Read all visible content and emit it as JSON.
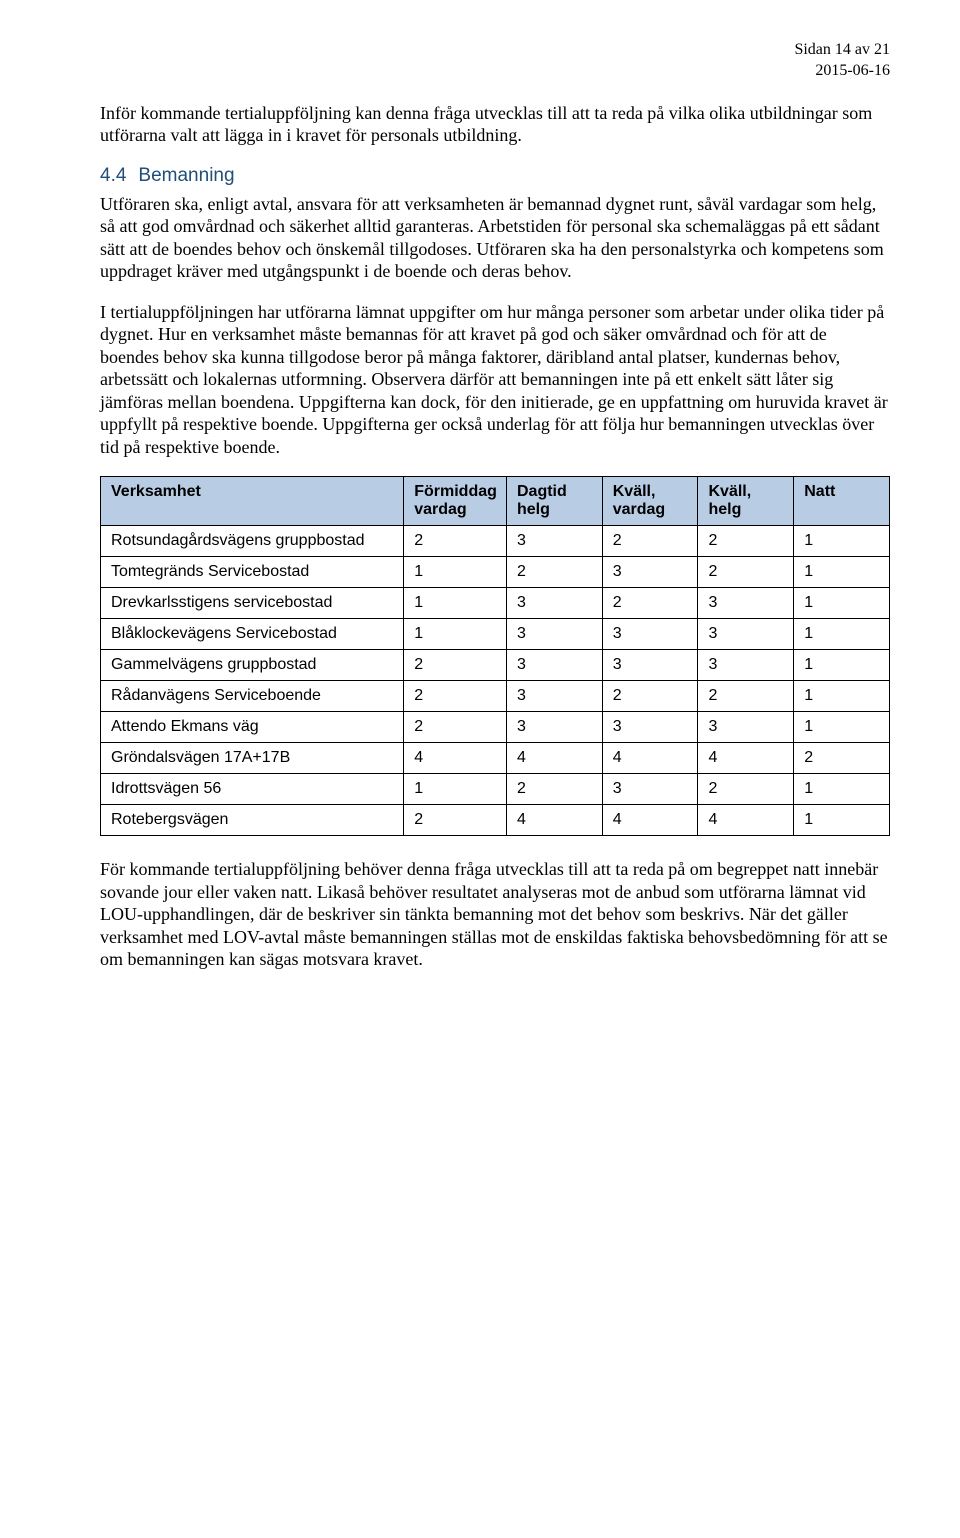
{
  "header": {
    "page_label": "Sidan 14 av 21",
    "date": "2015-06-16"
  },
  "intro": "Inför kommande tertialuppföljning kan denna fråga utvecklas till att ta reda på vilka olika utbildningar som utförarna valt att lägga in i kravet för personals utbildning.",
  "section": {
    "number": "4.4",
    "title": "Bemanning",
    "p1": "Utföraren ska, enligt avtal, ansvara för att verksamheten är bemannad dygnet runt, såväl vardagar som helg, så att god omvårdnad och säkerhet alltid garanteras. Arbetstiden för personal ska schemaläggas på ett sådant sätt att de boendes behov och önskemål tillgodoses. Utföraren ska ha den personalstyrka och kompetens som uppdraget kräver med utgångspunkt i de boende och deras behov.",
    "p2": "I tertialuppföljningen har utförarna lämnat uppgifter om hur många personer som arbetar under olika tider på dygnet. Hur en verksamhet måste bemannas för att kravet på god och säker omvårdnad och för att de boendes behov ska kunna tillgodose beror på många faktorer, däribland antal platser, kundernas behov, arbetssätt och lokalernas utformning. Observera därför att bemanningen inte på ett enkelt sätt låter sig jämföras mellan boendena. Uppgifterna kan dock, för den initierade, ge en uppfattning om huruvida kravet är uppfyllt på respektive boende. Uppgifterna ger också underlag för att följa hur bemanningen utvecklas över tid på respektive boende."
  },
  "table": {
    "columns": [
      "Verksamhet",
      "Förmiddag vardag",
      "Dagtid helg",
      "Kväll, vardag",
      "Kväll, helg",
      "Natt"
    ],
    "rows": [
      [
        "Rotsundagårdsvägens gruppbostad",
        "2",
        "3",
        "2",
        "2",
        "1"
      ],
      [
        "Tomtegränds Servicebostad",
        "1",
        "2",
        "3",
        "2",
        "1"
      ],
      [
        "Drevkarlsstigens servicebostad",
        "1",
        "3",
        "2",
        "3",
        "1"
      ],
      [
        "Blåklockevägens Servicebostad",
        "1",
        "3",
        "3",
        "3",
        "1"
      ],
      [
        "Gammelvägens gruppbostad",
        "2",
        "3",
        "3",
        "3",
        "1"
      ],
      [
        "Rådanvägens Serviceboende",
        "2",
        "3",
        "2",
        "2",
        "1"
      ],
      [
        "Attendo Ekmans väg",
        "2",
        "3",
        "3",
        "3",
        "1"
      ],
      [
        "Gröndalsvägen 17A+17B",
        "4",
        "4",
        "4",
        "4",
        "2"
      ],
      [
        "Idrottsvägen 56",
        "1",
        "2",
        "3",
        "2",
        "1"
      ],
      [
        "Rotebergsvägen",
        "2",
        "4",
        "4",
        "4",
        "1"
      ]
    ]
  },
  "closing": "För kommande tertialuppföljning behöver denna fråga utvecklas till att ta reda på om begreppet natt innebär sovande jour eller vaken natt. Likaså behöver resultatet analyseras mot de anbud som utförarna lämnat vid LOU-upphandlingen, där de beskriver sin tänkta bemanning mot det behov som beskrivs. När det gäller verksamhet med LOV-avtal måste bemanningen ställas mot de enskildas faktiska behovsbedömning för att se om bemanningen kan sägas motsvara kravet.",
  "colors": {
    "heading": "#1f4e79",
    "table_header_bg": "#b8cce4",
    "border": "#000000",
    "text": "#000000",
    "background": "#ffffff"
  },
  "fonts": {
    "body_family": "Times New Roman",
    "body_size_pt": 13,
    "heading_family": "Arial",
    "heading_size_pt": 14,
    "table_family": "Arial",
    "table_size_pt": 12
  }
}
